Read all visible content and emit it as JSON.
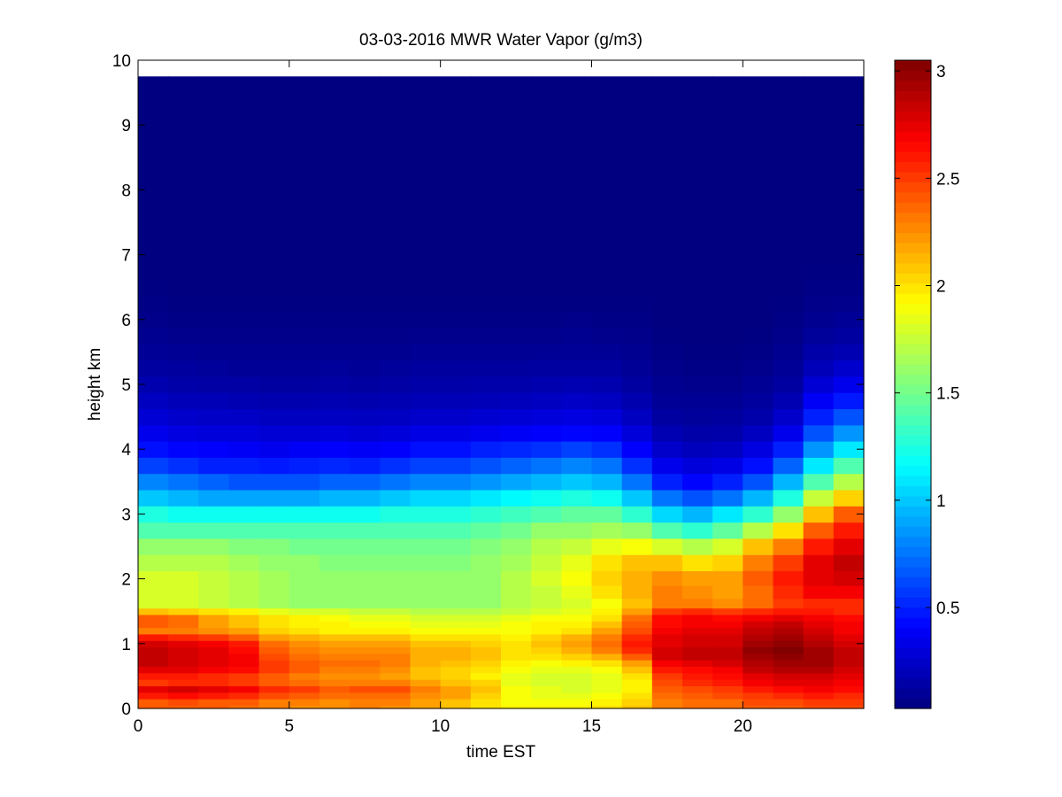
{
  "chart_data": {
    "type": "heatmap",
    "title": "03-03-2016 MWR Water Vapor (g/m3)",
    "xlabel": "time EST",
    "ylabel": "height km",
    "xlim": [
      0,
      24
    ],
    "ylim": [
      0,
      10
    ],
    "x_ticks": [
      "0",
      "5",
      "10",
      "15",
      "20"
    ],
    "y_ticks": [
      "0",
      "1",
      "2",
      "3",
      "4",
      "5",
      "6",
      "7",
      "8",
      "9",
      "10"
    ],
    "colorbar": {
      "colormap": "jet",
      "range": [
        0.03,
        3.05
      ],
      "ticks": [
        "0.5",
        "1",
        "1.5",
        "2",
        "2.5",
        "3"
      ]
    },
    "grid": false,
    "time_hours": [
      0.5,
      1.5,
      2.5,
      3.5,
      4.5,
      5.5,
      6.5,
      7.5,
      8.5,
      9.5,
      10.5,
      11.5,
      12.5,
      13.5,
      14.5,
      15.5,
      16.5,
      17.5,
      18.5,
      19.5,
      20.5,
      21.5,
      22.5,
      23.5
    ],
    "profile_heights_km": [
      0,
      0.1,
      0.2,
      0.3,
      0.4,
      0.5,
      0.6,
      0.7,
      0.8,
      0.9,
      1.0,
      1.1,
      1.2,
      1.3,
      1.4,
      1.5,
      1.6,
      1.8,
      2.0,
      2.25,
      2.5,
      2.75,
      3.0,
      3.25,
      3.5,
      3.75,
      4.0,
      4.25,
      4.5,
      4.75,
      5.0,
      5.25,
      5.5,
      5.75,
      6.0,
      6.25,
      6.5,
      6.75,
      7.0,
      7.5,
      8.0,
      8.5,
      9.0,
      9.75
    ],
    "profiles_g_m3": [
      [
        2.4,
        2.4,
        2.6,
        2.75,
        2.5,
        2.6,
        2.75,
        2.85,
        2.85,
        2.85,
        2.8,
        2.6,
        2.3,
        2.4,
        2.4,
        2.1,
        1.8,
        1.8,
        1.8,
        1.7,
        1.6,
        1.4,
        1.25,
        1.0,
        0.8,
        0.6,
        0.45,
        0.35,
        0.28,
        0.22,
        0.17,
        0.13,
        0.1,
        0.08,
        0.06,
        0.05,
        0.04,
        0.03,
        0.03,
        0.03,
        0.03,
        0.03,
        0.03,
        0.03
      ],
      [
        2.4,
        2.45,
        2.65,
        2.8,
        2.55,
        2.6,
        2.75,
        2.8,
        2.8,
        2.8,
        2.75,
        2.55,
        2.3,
        2.35,
        2.35,
        2.05,
        1.8,
        1.8,
        1.8,
        1.7,
        1.6,
        1.4,
        1.2,
        0.95,
        0.75,
        0.55,
        0.42,
        0.32,
        0.25,
        0.2,
        0.15,
        0.12,
        0.09,
        0.07,
        0.05,
        0.04,
        0.03,
        0.03,
        0.03,
        0.03,
        0.03,
        0.03,
        0.03,
        0.03
      ],
      [
        2.4,
        2.4,
        2.6,
        2.75,
        2.55,
        2.55,
        2.7,
        2.75,
        2.75,
        2.75,
        2.7,
        2.5,
        2.25,
        2.2,
        2.2,
        2.0,
        1.75,
        1.75,
        1.75,
        1.7,
        1.6,
        1.4,
        1.2,
        0.9,
        0.7,
        0.5,
        0.4,
        0.3,
        0.24,
        0.19,
        0.14,
        0.11,
        0.08,
        0.06,
        0.05,
        0.04,
        0.03,
        0.03,
        0.03,
        0.03,
        0.03,
        0.03,
        0.03,
        0.03
      ],
      [
        2.35,
        2.4,
        2.55,
        2.7,
        2.5,
        2.5,
        2.65,
        2.7,
        2.7,
        2.65,
        2.6,
        2.4,
        2.2,
        2.1,
        2.1,
        1.95,
        1.7,
        1.7,
        1.7,
        1.65,
        1.55,
        1.4,
        1.2,
        0.9,
        0.65,
        0.5,
        0.38,
        0.3,
        0.24,
        0.18,
        0.14,
        0.1,
        0.08,
        0.06,
        0.05,
        0.04,
        0.03,
        0.03,
        0.03,
        0.03,
        0.03,
        0.03,
        0.03,
        0.03
      ],
      [
        2.3,
        2.3,
        2.45,
        2.55,
        2.4,
        2.4,
        2.5,
        2.5,
        2.45,
        2.4,
        2.35,
        2.2,
        2.05,
        2.0,
        2.0,
        1.85,
        1.65,
        1.65,
        1.65,
        1.6,
        1.55,
        1.4,
        1.2,
        0.9,
        0.65,
        0.48,
        0.36,
        0.28,
        0.22,
        0.17,
        0.13,
        0.1,
        0.08,
        0.06,
        0.05,
        0.04,
        0.03,
        0.03,
        0.03,
        0.03,
        0.03,
        0.03,
        0.03,
        0.03
      ],
      [
        2.25,
        2.3,
        2.4,
        2.5,
        2.35,
        2.3,
        2.4,
        2.4,
        2.35,
        2.3,
        2.25,
        2.15,
        2.0,
        1.95,
        1.95,
        1.8,
        1.6,
        1.6,
        1.6,
        1.6,
        1.5,
        1.4,
        1.2,
        0.9,
        0.65,
        0.5,
        0.38,
        0.28,
        0.22,
        0.17,
        0.13,
        0.1,
        0.08,
        0.06,
        0.05,
        0.04,
        0.03,
        0.03,
        0.03,
        0.03,
        0.03,
        0.03,
        0.03,
        0.03
      ],
      [
        2.25,
        2.25,
        2.35,
        2.4,
        2.3,
        2.25,
        2.3,
        2.35,
        2.3,
        2.25,
        2.2,
        2.1,
        1.95,
        1.95,
        1.9,
        1.8,
        1.6,
        1.6,
        1.6,
        1.55,
        1.5,
        1.4,
        1.2,
        0.95,
        0.7,
        0.52,
        0.4,
        0.3,
        0.23,
        0.18,
        0.14,
        0.11,
        0.08,
        0.06,
        0.05,
        0.04,
        0.03,
        0.03,
        0.03,
        0.03,
        0.03,
        0.03,
        0.03,
        0.03
      ],
      [
        2.3,
        2.3,
        2.35,
        2.45,
        2.3,
        2.25,
        2.3,
        2.35,
        2.3,
        2.25,
        2.2,
        2.1,
        1.95,
        1.9,
        1.85,
        1.75,
        1.6,
        1.6,
        1.6,
        1.55,
        1.5,
        1.4,
        1.2,
        0.95,
        0.7,
        0.5,
        0.38,
        0.28,
        0.22,
        0.17,
        0.13,
        0.1,
        0.08,
        0.06,
        0.05,
        0.04,
        0.03,
        0.03,
        0.03,
        0.03,
        0.03,
        0.03,
        0.03,
        0.03
      ],
      [
        2.25,
        2.3,
        2.35,
        2.45,
        2.3,
        2.2,
        2.25,
        2.3,
        2.3,
        2.25,
        2.2,
        2.1,
        1.95,
        1.9,
        1.85,
        1.75,
        1.6,
        1.6,
        1.6,
        1.55,
        1.5,
        1.4,
        1.25,
        1.0,
        0.75,
        0.55,
        0.4,
        0.3,
        0.23,
        0.18,
        0.14,
        0.11,
        0.08,
        0.06,
        0.05,
        0.04,
        0.03,
        0.03,
        0.03,
        0.03,
        0.03,
        0.03,
        0.03,
        0.03
      ],
      [
        2.2,
        2.2,
        2.25,
        2.3,
        2.2,
        2.1,
        2.1,
        2.15,
        2.15,
        2.15,
        2.1,
        2.0,
        1.9,
        1.85,
        1.8,
        1.7,
        1.6,
        1.6,
        1.6,
        1.55,
        1.5,
        1.4,
        1.25,
        1.05,
        0.8,
        0.6,
        0.45,
        0.33,
        0.25,
        0.19,
        0.15,
        0.12,
        0.09,
        0.07,
        0.05,
        0.04,
        0.03,
        0.03,
        0.03,
        0.03,
        0.03,
        0.03,
        0.03,
        0.03
      ],
      [
        2.1,
        2.1,
        2.2,
        2.2,
        2.1,
        2.05,
        2.05,
        2.1,
        2.15,
        2.15,
        2.1,
        2.0,
        1.9,
        1.85,
        1.8,
        1.7,
        1.6,
        1.6,
        1.6,
        1.55,
        1.5,
        1.4,
        1.25,
        1.05,
        0.8,
        0.6,
        0.45,
        0.33,
        0.25,
        0.19,
        0.15,
        0.12,
        0.09,
        0.07,
        0.05,
        0.04,
        0.03,
        0.03,
        0.03,
        0.03,
        0.03,
        0.03,
        0.03,
        0.03
      ],
      [
        2.0,
        2.0,
        2.05,
        2.1,
        2.05,
        1.95,
        2.0,
        2.05,
        2.1,
        2.1,
        2.05,
        2.0,
        1.9,
        1.85,
        1.8,
        1.7,
        1.6,
        1.6,
        1.6,
        1.6,
        1.55,
        1.45,
        1.3,
        1.1,
        0.85,
        0.65,
        0.5,
        0.36,
        0.27,
        0.2,
        0.16,
        0.12,
        0.09,
        0.07,
        0.05,
        0.04,
        0.03,
        0.03,
        0.03,
        0.03,
        0.03,
        0.03,
        0.03,
        0.03
      ],
      [
        1.95,
        1.9,
        1.9,
        1.9,
        1.85,
        1.85,
        1.9,
        1.95,
        2.0,
        2.0,
        2.0,
        1.95,
        1.9,
        1.9,
        1.85,
        1.75,
        1.7,
        1.7,
        1.7,
        1.65,
        1.6,
        1.5,
        1.35,
        1.15,
        0.9,
        0.7,
        0.52,
        0.38,
        0.28,
        0.21,
        0.16,
        0.12,
        0.09,
        0.07,
        0.05,
        0.04,
        0.03,
        0.03,
        0.03,
        0.03,
        0.03,
        0.03,
        0.03,
        0.03
      ],
      [
        1.95,
        1.9,
        1.85,
        1.85,
        1.8,
        1.8,
        1.85,
        1.9,
        2.0,
        2.05,
        2.1,
        2.05,
        1.95,
        1.95,
        1.9,
        1.8,
        1.75,
        1.75,
        1.8,
        1.75,
        1.7,
        1.6,
        1.4,
        1.2,
        0.95,
        0.75,
        0.55,
        0.4,
        0.3,
        0.22,
        0.17,
        0.13,
        0.1,
        0.07,
        0.05,
        0.04,
        0.03,
        0.03,
        0.03,
        0.03,
        0.03,
        0.03,
        0.03,
        0.03
      ],
      [
        1.95,
        1.9,
        1.85,
        1.8,
        1.8,
        1.8,
        1.85,
        1.95,
        2.05,
        2.15,
        2.2,
        2.15,
        2.0,
        1.95,
        1.9,
        1.85,
        1.8,
        1.85,
        1.9,
        1.85,
        1.75,
        1.6,
        1.45,
        1.25,
        1.0,
        0.8,
        0.6,
        0.42,
        0.32,
        0.24,
        0.18,
        0.13,
        0.1,
        0.08,
        0.06,
        0.04,
        0.03,
        0.03,
        0.03,
        0.03,
        0.03,
        0.03,
        0.03,
        0.03
      ],
      [
        2.0,
        1.95,
        1.9,
        1.85,
        1.85,
        1.85,
        1.9,
        2.0,
        2.15,
        2.3,
        2.35,
        2.3,
        2.2,
        2.1,
        2.0,
        1.95,
        1.9,
        2.0,
        2.05,
        2.0,
        1.85,
        1.65,
        1.45,
        1.2,
        0.95,
        0.75,
        0.55,
        0.4,
        0.3,
        0.22,
        0.17,
        0.13,
        0.1,
        0.07,
        0.05,
        0.04,
        0.03,
        0.03,
        0.03,
        0.03,
        0.03,
        0.03,
        0.03,
        0.03
      ],
      [
        2.1,
        2.05,
        2.0,
        1.95,
        1.95,
        2.0,
        2.1,
        2.2,
        2.4,
        2.55,
        2.6,
        2.55,
        2.45,
        2.4,
        2.35,
        2.2,
        2.1,
        2.15,
        2.15,
        2.1,
        1.9,
        1.6,
        1.3,
        1.0,
        0.75,
        0.55,
        0.4,
        0.3,
        0.22,
        0.17,
        0.13,
        0.1,
        0.08,
        0.06,
        0.05,
        0.04,
        0.03,
        0.03,
        0.03,
        0.03,
        0.03,
        0.03,
        0.03,
        0.03
      ],
      [
        2.3,
        2.3,
        2.35,
        2.4,
        2.45,
        2.5,
        2.6,
        2.7,
        2.8,
        2.8,
        2.75,
        2.75,
        2.7,
        2.65,
        2.65,
        2.5,
        2.3,
        2.3,
        2.25,
        2.1,
        1.8,
        1.4,
        1.05,
        0.75,
        0.5,
        0.35,
        0.25,
        0.18,
        0.13,
        0.1,
        0.08,
        0.06,
        0.05,
        0.04,
        0.03,
        0.03,
        0.03,
        0.03,
        0.03,
        0.03,
        0.03,
        0.03,
        0.03,
        0.03
      ],
      [
        2.35,
        2.35,
        2.4,
        2.45,
        2.55,
        2.6,
        2.65,
        2.75,
        2.85,
        2.85,
        2.8,
        2.8,
        2.75,
        2.7,
        2.7,
        2.55,
        2.3,
        2.25,
        2.2,
        2.0,
        1.7,
        1.3,
        0.95,
        0.65,
        0.42,
        0.3,
        0.21,
        0.15,
        0.11,
        0.09,
        0.07,
        0.05,
        0.04,
        0.03,
        0.03,
        0.03,
        0.03,
        0.03,
        0.03,
        0.03,
        0.03,
        0.03,
        0.03,
        0.03
      ],
      [
        2.35,
        2.35,
        2.45,
        2.5,
        2.6,
        2.65,
        2.7,
        2.8,
        2.85,
        2.85,
        2.8,
        2.8,
        2.75,
        2.7,
        2.65,
        2.5,
        2.25,
        2.2,
        2.2,
        2.05,
        1.8,
        1.45,
        1.1,
        0.75,
        0.5,
        0.33,
        0.23,
        0.16,
        0.12,
        0.09,
        0.07,
        0.05,
        0.04,
        0.03,
        0.03,
        0.03,
        0.03,
        0.03,
        0.03,
        0.03,
        0.03,
        0.03,
        0.03,
        0.03
      ],
      [
        2.4,
        2.45,
        2.5,
        2.6,
        2.7,
        2.75,
        2.85,
        2.9,
        2.95,
        3.0,
        2.95,
        2.9,
        2.85,
        2.8,
        2.7,
        2.55,
        2.35,
        2.35,
        2.4,
        2.3,
        2.1,
        1.7,
        1.3,
        0.95,
        0.65,
        0.45,
        0.32,
        0.22,
        0.16,
        0.12,
        0.09,
        0.07,
        0.05,
        0.04,
        0.03,
        0.03,
        0.03,
        0.03,
        0.03,
        0.03,
        0.03,
        0.03,
        0.03,
        0.03
      ],
      [
        2.4,
        2.45,
        2.55,
        2.65,
        2.75,
        2.8,
        2.9,
        2.95,
        3.0,
        3.05,
        3.0,
        2.95,
        2.9,
        2.85,
        2.75,
        2.6,
        2.5,
        2.55,
        2.6,
        2.5,
        2.3,
        2.0,
        1.6,
        1.25,
        0.95,
        0.7,
        0.5,
        0.35,
        0.25,
        0.18,
        0.13,
        0.1,
        0.08,
        0.06,
        0.05,
        0.04,
        0.03,
        0.03,
        0.03,
        0.03,
        0.03,
        0.03,
        0.03,
        0.03
      ],
      [
        2.45,
        2.5,
        2.6,
        2.7,
        2.75,
        2.8,
        2.9,
        2.95,
        2.95,
        2.95,
        2.9,
        2.85,
        2.8,
        2.75,
        2.7,
        2.6,
        2.55,
        2.7,
        2.75,
        2.75,
        2.6,
        2.4,
        2.1,
        1.75,
        1.4,
        1.1,
        0.85,
        0.65,
        0.5,
        0.38,
        0.28,
        0.2,
        0.15,
        0.11,
        0.08,
        0.06,
        0.05,
        0.04,
        0.03,
        0.03,
        0.03,
        0.03,
        0.03,
        0.03
      ],
      [
        2.45,
        2.5,
        2.55,
        2.65,
        2.7,
        2.75,
        2.8,
        2.85,
        2.85,
        2.85,
        2.8,
        2.75,
        2.7,
        2.7,
        2.65,
        2.55,
        2.55,
        2.7,
        2.8,
        2.85,
        2.75,
        2.6,
        2.4,
        2.05,
        1.7,
        1.4,
        1.1,
        0.85,
        0.65,
        0.48,
        0.35,
        0.26,
        0.18,
        0.13,
        0.1,
        0.07,
        0.05,
        0.04,
        0.03,
        0.03,
        0.03,
        0.03,
        0.03,
        0.03
      ]
    ]
  }
}
